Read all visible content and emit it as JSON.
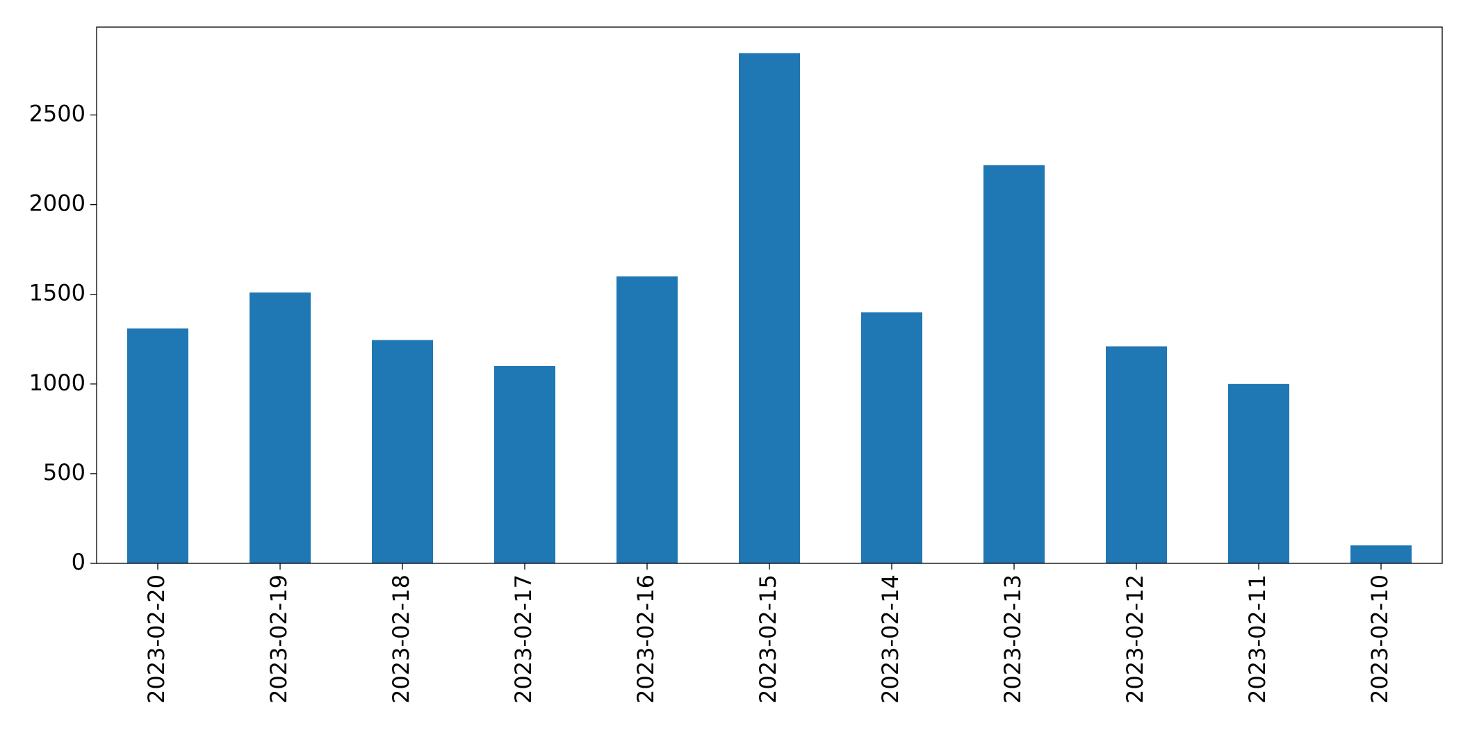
{
  "chart_data": {
    "type": "bar",
    "categories": [
      "2023-02-20",
      "2023-02-19",
      "2023-02-18",
      "2023-02-17",
      "2023-02-16",
      "2023-02-15",
      "2023-02-14",
      "2023-02-13",
      "2023-02-12",
      "2023-02-11",
      "2023-02-10"
    ],
    "values": [
      1310,
      1510,
      1245,
      1100,
      1600,
      2845,
      1400,
      2220,
      1210,
      1000,
      100
    ],
    "color": "#1f77b4",
    "ylim": [
      0,
      2990
    ],
    "yticks": [
      0,
      500,
      1000,
      1500,
      2000,
      2500
    ],
    "grid": false
  }
}
